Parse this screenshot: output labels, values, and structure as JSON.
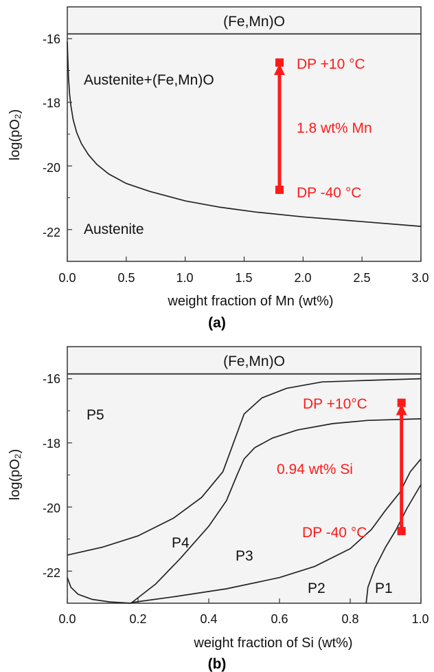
{
  "chart_data": [
    {
      "type": "line",
      "panel": "(a)",
      "xlabel": "weight fraction of Mn (wt%)",
      "ylabel": "log(pO₂)",
      "xlim": [
        0.0,
        3.0
      ],
      "ylim": [
        -23,
        -15
      ],
      "x_ticks": [
        0.0,
        0.5,
        1.0,
        1.5,
        2.0,
        2.5,
        3.0
      ],
      "x_tick_labels": [
        "0.0",
        "0.5",
        "1.0",
        "1.5",
        "2.0",
        "2.5",
        "3.0"
      ],
      "y_ticks": [
        -16,
        -18,
        -20,
        -22
      ],
      "y_tick_labels": [
        "-16",
        "-18",
        "-20",
        "-22"
      ],
      "series": [
        {
          "x": [
            0.0,
            3.0
          ],
          "y": [
            -15.85,
            -15.85
          ]
        },
        {
          "x": [
            0.0,
            0.005,
            0.01,
            0.02,
            0.03,
            0.05,
            0.08,
            0.12,
            0.18,
            0.25,
            0.35,
            0.5,
            0.7,
            1.0,
            1.3,
            1.6,
            2.0,
            2.5,
            3.0
          ],
          "y": [
            -16.1,
            -16.7,
            -17.2,
            -17.75,
            -18.1,
            -18.55,
            -18.95,
            -19.3,
            -19.65,
            -19.95,
            -20.25,
            -20.55,
            -20.8,
            -21.1,
            -21.3,
            -21.45,
            -21.6,
            -21.75,
            -21.9
          ]
        }
      ],
      "arrow": {
        "x": 1.8,
        "y_from": -20.75,
        "y_to": -16.75
      },
      "annotations": {
        "top_region": "(Fe,Mn)O",
        "upper_region": "Austenite+(Fe,Mn)O",
        "lower_region": "Austenite",
        "dp_high": "DP +10 °C",
        "dp_low": "DP -40 °C",
        "arrow_label": "1.8 wt% Mn"
      }
    },
    {
      "type": "line",
      "panel": "(b)",
      "xlabel": "weight fraction of Si (wt%)",
      "ylabel": "log(pO₂)",
      "xlim": [
        0.0,
        1.0
      ],
      "ylim": [
        -23,
        -15
      ],
      "x_ticks": [
        0.0,
        0.2,
        0.4,
        0.6,
        0.8,
        1.0
      ],
      "x_tick_labels": [
        "0.0",
        "0.2",
        "0.4",
        "0.6",
        "0.8",
        "1.0"
      ],
      "y_ticks": [
        -16,
        -18,
        -20,
        -22
      ],
      "y_tick_labels": [
        "-16",
        "-18",
        "-20",
        "-22"
      ],
      "series": [
        {
          "x": [
            0.0,
            1.0
          ],
          "y": [
            -15.85,
            -15.85
          ]
        },
        {
          "x": [
            0.0,
            0.1,
            0.2,
            0.3,
            0.38,
            0.44,
            0.47,
            0.5,
            0.55,
            0.62,
            0.72,
            0.85,
            1.0
          ],
          "y": [
            -21.5,
            -21.25,
            -20.9,
            -20.35,
            -19.7,
            -18.9,
            -18.0,
            -17.1,
            -16.6,
            -16.3,
            -16.1,
            -16.05,
            -16.0
          ]
        },
        {
          "x": [
            0.18,
            0.25,
            0.32,
            0.4,
            0.45,
            0.48,
            0.5,
            0.53,
            0.58,
            0.65,
            0.75,
            0.85,
            1.0
          ],
          "y": [
            -23.0,
            -22.4,
            -21.6,
            -20.6,
            -19.8,
            -19.0,
            -18.5,
            -18.15,
            -17.85,
            -17.6,
            -17.4,
            -17.3,
            -17.25
          ]
        },
        {
          "x": [
            0.0,
            0.01,
            0.03,
            0.07,
            0.12,
            0.18
          ],
          "y": [
            -22.2,
            -22.5,
            -22.72,
            -22.88,
            -22.96,
            -23.0
          ]
        },
        {
          "x": [
            0.18,
            0.3,
            0.45,
            0.6,
            0.7,
            0.8,
            0.86,
            0.9,
            0.94,
            0.97,
            1.0
          ],
          "y": [
            -22.98,
            -22.8,
            -22.55,
            -22.2,
            -21.85,
            -21.3,
            -20.7,
            -20.1,
            -19.55,
            -18.9,
            -18.5
          ]
        },
        {
          "x": [
            0.845,
            0.85,
            0.87,
            0.9,
            0.93,
            0.96,
            1.0
          ],
          "y": [
            -23.0,
            -22.5,
            -21.9,
            -21.25,
            -20.7,
            -20.05,
            -19.3
          ]
        }
      ],
      "arrow": {
        "x": 0.945,
        "y_from": -20.75,
        "y_to": -16.75
      },
      "annotations": {
        "top_region": "(Fe,Mn)O",
        "p1": "P1",
        "p2": "P2",
        "p3": "P3",
        "p4": "P4",
        "p5": "P5",
        "dp_high": "DP +10°C",
        "dp_low": "DP -40 °C",
        "arrow_label": "0.94 wt% Si"
      }
    }
  ]
}
